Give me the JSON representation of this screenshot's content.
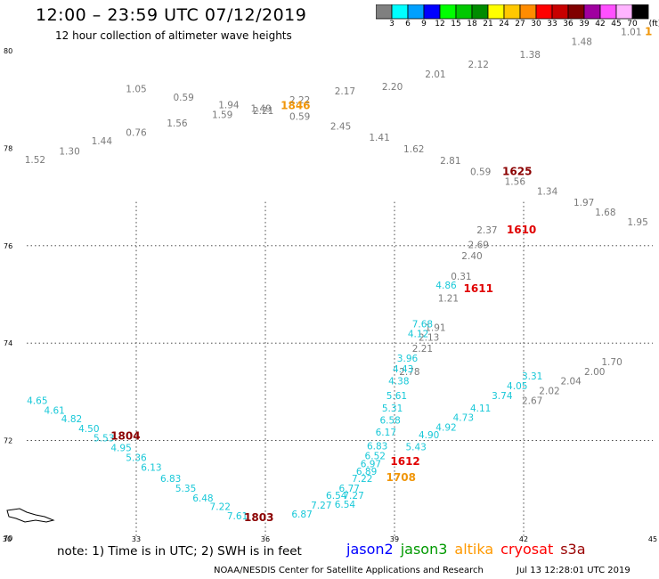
{
  "header": {
    "title": "12:00 – 23:59 UTC 07/12/2019",
    "subtitle": "12 hour collection of altimeter wave heights"
  },
  "colorbar": {
    "unit": "(ft)",
    "bins": [
      {
        "label": "3",
        "color": "#808080"
      },
      {
        "label": "6",
        "color": "#00ffff"
      },
      {
        "label": "9",
        "color": "#00a0ff"
      },
      {
        "label": "12",
        "color": "#0000ff"
      },
      {
        "label": "15",
        "color": "#00ff00"
      },
      {
        "label": "18",
        "color": "#00c800"
      },
      {
        "label": "21",
        "color": "#008c00"
      },
      {
        "label": "24",
        "color": "#ffff00"
      },
      {
        "label": "27",
        "color": "#ffc800"
      },
      {
        "label": "30",
        "color": "#ff8c00"
      },
      {
        "label": "33",
        "color": "#ff0000"
      },
      {
        "label": "36",
        "color": "#c80000"
      },
      {
        "label": "39",
        "color": "#800000"
      },
      {
        "label": "42",
        "color": "#a000a0"
      },
      {
        "label": "45",
        "color": "#ff50ff"
      },
      {
        "label": "70",
        "color": "#ffb4ff"
      },
      {
        "label": "",
        "color": "#000000"
      }
    ]
  },
  "footer": {
    "note": "note: 1) Time is in UTC; 2) SWH is in feet",
    "legend": [
      {
        "name": "jason2",
        "color": "#0000ff"
      },
      {
        "name": "jason3",
        "color": "#009900"
      },
      {
        "name": "altika",
        "color": "#ff9900"
      },
      {
        "name": "cryosat",
        "color": "#ff0000"
      },
      {
        "name": "s3a",
        "color": "#990000"
      }
    ],
    "credit": "NOAA/NESDIS Center for Satellite Applications and Research",
    "timestamp": "Jul 13 12:28:01 UTC 2019"
  },
  "chart_data": {
    "type": "scatter",
    "xlim": [
      30,
      45
    ],
    "ylim": [
      70,
      80
    ],
    "xticks": [
      "30",
      "33",
      "36",
      "39",
      "42",
      "45"
    ],
    "yticks": [
      "70",
      "72",
      "74",
      "76",
      "78",
      "80"
    ],
    "grid": "dotted",
    "colors": {
      "gray": "#7a7a7a",
      "cyan": "#18c8d8",
      "orange": "#f0960a",
      "red": "#e00000",
      "darkred": "#8b0000"
    },
    "series": [
      {
        "color": "gray",
        "points": [
          {
            "x": 30.65,
            "y": 77.7,
            "v": "1.52"
          },
          {
            "x": 31.45,
            "y": 77.87,
            "v": "1.30"
          },
          {
            "x": 32.2,
            "y": 78.08,
            "v": "1.44"
          },
          {
            "x": 33.0,
            "y": 78.25,
            "v": "0.76"
          },
          {
            "x": 33.0,
            "y": 79.15,
            "v": "1.05"
          },
          {
            "x": 33.95,
            "y": 78.45,
            "v": "1.56"
          },
          {
            "x": 34.1,
            "y": 78.98,
            "v": "0.59"
          },
          {
            "x": 35.0,
            "y": 78.62,
            "v": "1.59"
          },
          {
            "x": 35.15,
            "y": 78.82,
            "v": "1.94"
          },
          {
            "x": 35.9,
            "y": 78.75,
            "v": "1.49"
          },
          {
            "x": 35.95,
            "y": 78.7,
            "v": "2.21"
          },
          {
            "x": 36.8,
            "y": 78.92,
            "v": "2.22"
          },
          {
            "x": 36.8,
            "y": 78.58,
            "v": "0.59"
          },
          {
            "x": 37.75,
            "y": 78.38,
            "v": "2.45"
          },
          {
            "x": 37.85,
            "y": 79.1,
            "v": "2.17"
          },
          {
            "x": 38.65,
            "y": 78.15,
            "v": "1.41"
          },
          {
            "x": 38.95,
            "y": 79.2,
            "v": "2.20"
          },
          {
            "x": 39.45,
            "y": 77.92,
            "v": "1.62"
          },
          {
            "x": 39.95,
            "y": 79.45,
            "v": "2.01"
          },
          {
            "x": 40.3,
            "y": 77.68,
            "v": "2.81"
          },
          {
            "x": 40.95,
            "y": 79.65,
            "v": "2.12"
          },
          {
            "x": 41.0,
            "y": 77.45,
            "v": "0.59"
          },
          {
            "x": 41.8,
            "y": 77.25,
            "v": "1.56"
          },
          {
            "x": 42.15,
            "y": 79.85,
            "v": "1.38"
          },
          {
            "x": 42.55,
            "y": 77.05,
            "v": "1.34"
          },
          {
            "x": 43.35,
            "y": 80.12,
            "v": "1.48"
          },
          {
            "x": 43.4,
            "y": 76.82,
            "v": "1.97"
          },
          {
            "x": 43.9,
            "y": 76.62,
            "v": "1.68"
          },
          {
            "x": 44.5,
            "y": 80.32,
            "v": "1.01"
          },
          {
            "x": 44.65,
            "y": 76.42,
            "v": "1.95"
          },
          {
            "x": 41.15,
            "y": 76.25,
            "v": "2.37"
          },
          {
            "x": 40.95,
            "y": 75.95,
            "v": "2.69"
          },
          {
            "x": 40.8,
            "y": 75.72,
            "v": "2.40"
          },
          {
            "x": 40.55,
            "y": 75.3,
            "v": "0.31"
          },
          {
            "x": 40.25,
            "y": 74.85,
            "v": "1.21"
          },
          {
            "x": 39.95,
            "y": 74.25,
            "v": "1.91"
          },
          {
            "x": 39.8,
            "y": 74.05,
            "v": "2.13"
          },
          {
            "x": 39.65,
            "y": 73.82,
            "v": "2.21"
          },
          {
            "x": 39.35,
            "y": 73.35,
            "v": "2.78"
          },
          {
            "x": 44.05,
            "y": 73.55,
            "v": "1.70"
          },
          {
            "x": 43.65,
            "y": 73.35,
            "v": "2.00"
          },
          {
            "x": 43.1,
            "y": 73.15,
            "v": "2.04"
          },
          {
            "x": 42.6,
            "y": 72.95,
            "v": "2.02"
          },
          {
            "x": 42.2,
            "y": 72.75,
            "v": "2.67"
          }
        ]
      },
      {
        "color": "cyan",
        "points": [
          {
            "x": 30.7,
            "y": 72.75,
            "v": "4.65"
          },
          {
            "x": 31.1,
            "y": 72.55,
            "v": "4.61"
          },
          {
            "x": 31.5,
            "y": 72.38,
            "v": "4.82"
          },
          {
            "x": 31.9,
            "y": 72.18,
            "v": "4.50"
          },
          {
            "x": 32.25,
            "y": 71.98,
            "v": "5.53"
          },
          {
            "x": 32.65,
            "y": 71.78,
            "v": "4.95"
          },
          {
            "x": 33.0,
            "y": 71.58,
            "v": "5.36"
          },
          {
            "x": 33.35,
            "y": 71.38,
            "v": "6.13"
          },
          {
            "x": 33.8,
            "y": 71.15,
            "v": "6.83"
          },
          {
            "x": 34.15,
            "y": 70.95,
            "v": "5.35"
          },
          {
            "x": 34.55,
            "y": 70.75,
            "v": "6.48"
          },
          {
            "x": 34.95,
            "y": 70.58,
            "v": "7.22"
          },
          {
            "x": 35.35,
            "y": 70.38,
            "v": "7.61"
          },
          {
            "x": 36.85,
            "y": 70.42,
            "v": "6.87"
          },
          {
            "x": 37.3,
            "y": 70.6,
            "v": "7.27"
          },
          {
            "x": 37.65,
            "y": 70.8,
            "v": "6.54"
          },
          {
            "x": 37.85,
            "y": 70.62,
            "v": "6.54"
          },
          {
            "x": 37.95,
            "y": 70.95,
            "v": "6.77"
          },
          {
            "x": 38.05,
            "y": 70.8,
            "v": "7.27"
          },
          {
            "x": 38.25,
            "y": 71.15,
            "v": "7.22"
          },
          {
            "x": 38.35,
            "y": 71.3,
            "v": "6.89"
          },
          {
            "x": 38.45,
            "y": 71.45,
            "v": "6.97"
          },
          {
            "x": 38.55,
            "y": 71.62,
            "v": "6.52"
          },
          {
            "x": 38.6,
            "y": 71.82,
            "v": "6.83"
          },
          {
            "x": 38.8,
            "y": 72.1,
            "v": "6.17"
          },
          {
            "x": 38.9,
            "y": 72.35,
            "v": "6.58"
          },
          {
            "x": 38.95,
            "y": 72.6,
            "v": "5.31"
          },
          {
            "x": 39.05,
            "y": 72.85,
            "v": "5.61"
          },
          {
            "x": 39.1,
            "y": 73.15,
            "v": "4.38"
          },
          {
            "x": 39.2,
            "y": 73.4,
            "v": "4.43"
          },
          {
            "x": 39.3,
            "y": 73.62,
            "v": "3.96"
          },
          {
            "x": 39.55,
            "y": 74.12,
            "v": "4.12"
          },
          {
            "x": 39.65,
            "y": 74.32,
            "v": "7.68"
          },
          {
            "x": 40.2,
            "y": 75.12,
            "v": "4.86"
          },
          {
            "x": 39.5,
            "y": 71.8,
            "v": "5.43"
          },
          {
            "x": 39.8,
            "y": 72.05,
            "v": "4.90"
          },
          {
            "x": 40.2,
            "y": 72.2,
            "v": "4.92"
          },
          {
            "x": 40.6,
            "y": 72.4,
            "v": "4.73"
          },
          {
            "x": 41.0,
            "y": 72.6,
            "v": "4.11"
          },
          {
            "x": 41.5,
            "y": 72.85,
            "v": "3.74"
          },
          {
            "x": 41.85,
            "y": 73.05,
            "v": "4.05"
          },
          {
            "x": 42.2,
            "y": 73.25,
            "v": "3.31"
          }
        ]
      },
      {
        "color": "orange",
        "points": [
          {
            "x": 36.7,
            "y": 78.8,
            "v": "1846"
          },
          {
            "x": 39.15,
            "y": 71.17,
            "v": "1708"
          },
          {
            "x": 44.9,
            "y": 80.32,
            "v": "1"
          }
        ]
      },
      {
        "color": "red",
        "points": [
          {
            "x": 39.25,
            "y": 71.5,
            "v": "1612"
          },
          {
            "x": 40.95,
            "y": 75.05,
            "v": "1611"
          },
          {
            "x": 41.95,
            "y": 76.25,
            "v": "1610"
          }
        ]
      },
      {
        "color": "darkred",
        "points": [
          {
            "x": 32.75,
            "y": 72.02,
            "v": "1804"
          },
          {
            "x": 35.85,
            "y": 70.35,
            "v": "1803"
          },
          {
            "x": 41.85,
            "y": 77.45,
            "v": "1625"
          }
        ]
      }
    ]
  }
}
